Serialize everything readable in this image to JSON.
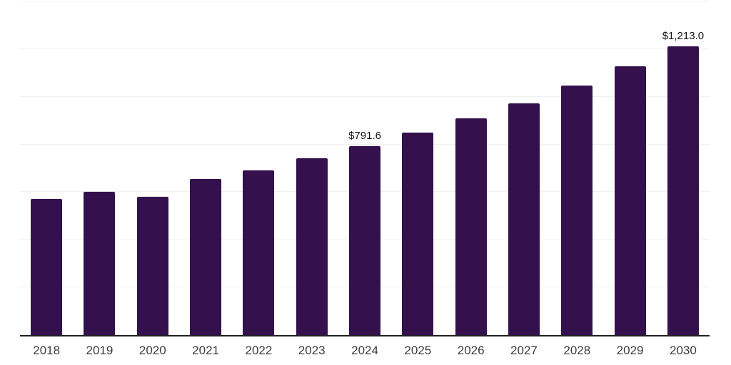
{
  "chart_data": {
    "type": "bar",
    "title": "",
    "xlabel": "",
    "ylabel": "",
    "categories": [
      "2018",
      "2019",
      "2020",
      "2021",
      "2022",
      "2023",
      "2024",
      "2025",
      "2026",
      "2027",
      "2028",
      "2029",
      "2030"
    ],
    "values": [
      572,
      601,
      580,
      655,
      692,
      742,
      791.6,
      851,
      909,
      972,
      1046,
      1127,
      1213.0
    ],
    "data_labels": [
      "",
      "",
      "",
      "",
      "",
      "",
      "$791.6",
      "",
      "",
      "",
      "",
      "",
      "$1,213.0"
    ],
    "ylim": [
      0,
      1400
    ],
    "gridline_interval": 200,
    "grid": true,
    "legend": "none",
    "bar_color": "#34114d",
    "gridline_color": "#f0f0f1",
    "axis_color": "#212121",
    "tick_label_color": "#3c3c3c",
    "data_label_color": "#111111",
    "background_color": "#ffffff"
  }
}
